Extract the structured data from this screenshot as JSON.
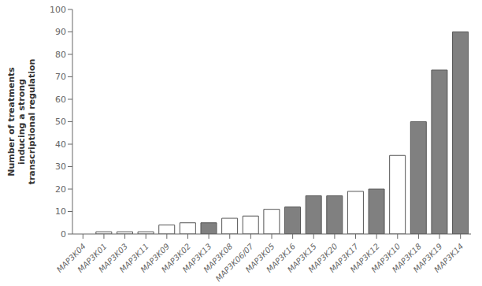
{
  "chart_data": {
    "type": "bar",
    "categories": [
      "MAP3K04",
      "MAP3K01",
      "MAP3K03",
      "MAP3K11",
      "MAP3K09",
      "MAP3K02",
      "MAP3K13",
      "MAP3K08",
      "MAP3K06/07",
      "MAP3K05",
      "MAP3K16",
      "MAP3K15",
      "MAP3K20",
      "MAP3K17",
      "MAP3K12",
      "MAP3K10",
      "MAP3K18",
      "MAP3K19",
      "MAP3K14"
    ],
    "values": [
      0,
      1,
      1,
      1,
      4,
      5,
      5,
      7,
      8,
      11,
      12,
      17,
      17,
      19,
      20,
      35,
      50,
      73,
      90
    ],
    "colors": [
      "#ffffff",
      "#ffffff",
      "#ffffff",
      "#ffffff",
      "#ffffff",
      "#ffffff",
      "#808080",
      "#ffffff",
      "#ffffff",
      "#ffffff",
      "#808080",
      "#808080",
      "#808080",
      "#ffffff",
      "#808080",
      "#ffffff",
      "#808080",
      "#808080",
      "#808080"
    ],
    "ylabel": "Number of treatments\ninducing a strong\ntranscriptional regulation",
    "ylim": [
      0,
      100
    ],
    "yticks": [
      0,
      10,
      20,
      30,
      40,
      50,
      60,
      70,
      80,
      90,
      100
    ],
    "grid": false
  }
}
